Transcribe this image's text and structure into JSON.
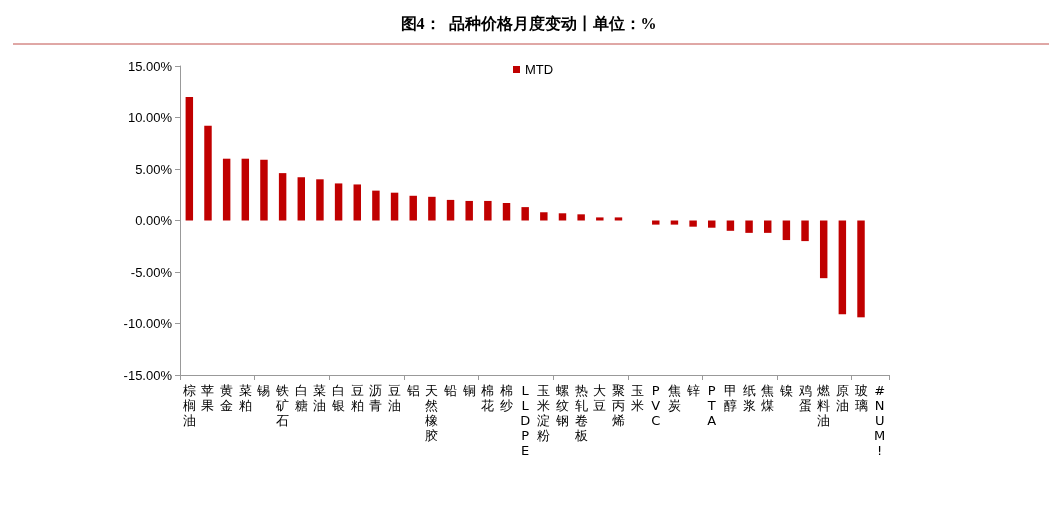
{
  "chart_data": {
    "type": "bar",
    "title": "图4：  品种价格月度变动丨单位：%",
    "categories": [
      "棕榈油",
      "苹果",
      "黄金",
      "菜粕",
      "锡",
      "铁矿石",
      "白糖",
      "菜油",
      "白银",
      "豆粕",
      "沥青",
      "豆油",
      "铝",
      "天然橡胶",
      "铅",
      "铜",
      "棉花",
      "棉纱",
      "LLDPE",
      "玉米淀粉",
      "螺纹钢",
      "热轧卷板",
      "大豆",
      "聚丙烯",
      "玉米",
      "PVC",
      "焦炭",
      "锌",
      "PTA",
      "甲醇",
      "纸浆",
      "焦煤",
      "镍",
      "鸡蛋",
      "燃料油",
      "原油",
      "玻璃",
      "#NUM!"
    ],
    "series": [
      {
        "name": "MTD",
        "color": "#c00000",
        "values": [
          12.0,
          9.2,
          6.0,
          6.0,
          5.9,
          4.6,
          4.2,
          4.0,
          3.6,
          3.5,
          2.9,
          2.7,
          2.4,
          2.3,
          2.0,
          1.9,
          1.9,
          1.7,
          1.3,
          0.8,
          0.7,
          0.6,
          0.3,
          0.3,
          null,
          -0.4,
          -0.4,
          -0.6,
          -0.7,
          -1.0,
          -1.2,
          -1.2,
          -1.9,
          -2.0,
          -5.6,
          -9.1,
          -9.4,
          null
        ]
      }
    ],
    "ylim": [
      -15,
      15
    ],
    "yticks": [
      {
        "value": -15,
        "label": "-15.00%"
      },
      {
        "value": -10,
        "label": "-10.00%"
      },
      {
        "value": -5,
        "label": "-5.00%"
      },
      {
        "value": 0,
        "label": "0.00%"
      },
      {
        "value": 5,
        "label": "5.00%"
      },
      {
        "value": 10,
        "label": "10.00%"
      },
      {
        "value": 15,
        "label": "15.00%"
      }
    ],
    "grid": false,
    "legend": "top"
  }
}
